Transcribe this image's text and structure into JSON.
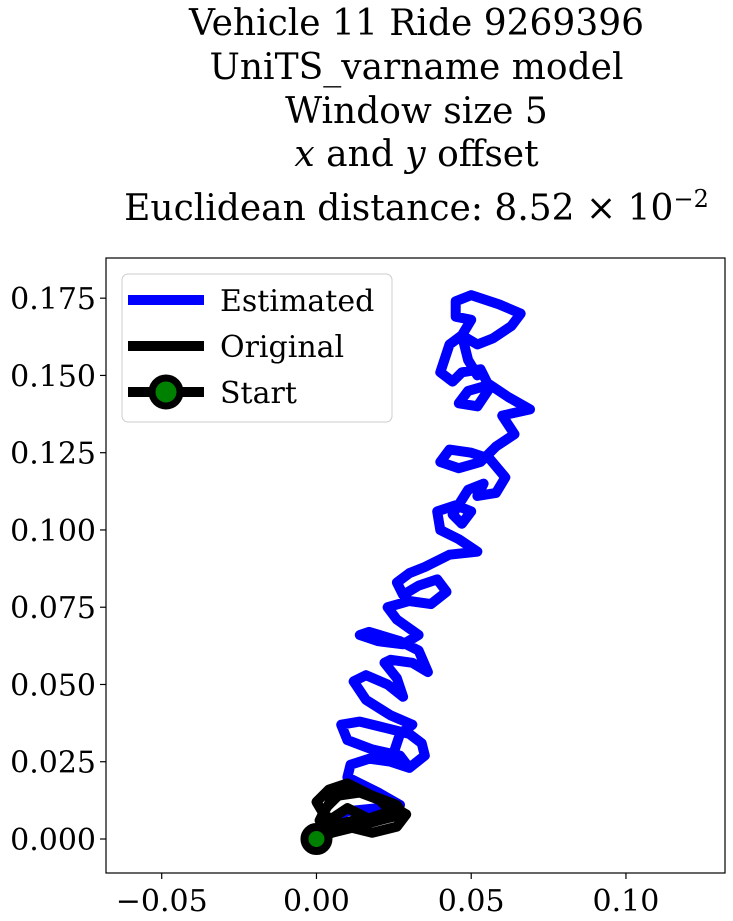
{
  "chart_data": {
    "type": "line",
    "title_lines": [
      "Vehicle 11 Ride 9269396",
      "UniTS_varname model",
      "Window size 5",
      "x and y offset",
      "Euclidean distance: 8.52 × 10⁻²"
    ],
    "title_math": {
      "offset_x": "x",
      "offset_and": " and ",
      "offset_y": "y",
      "offset_rest": " offset",
      "dist_prefix": "Euclidean distance: 8.52 × 10",
      "dist_exp": "−2"
    },
    "xlim": [
      -0.068,
      0.132
    ],
    "ylim": [
      -0.011,
      0.188
    ],
    "x_ticks": [
      -0.05,
      0.0,
      0.05,
      0.1
    ],
    "x_tick_labels": [
      "−0.05",
      "0.00",
      "0.05",
      "0.10"
    ],
    "y_ticks": [
      0.0,
      0.025,
      0.05,
      0.075,
      0.1,
      0.125,
      0.15,
      0.175
    ],
    "y_tick_labels": [
      "0.000",
      "0.025",
      "0.050",
      "0.075",
      "0.100",
      "0.125",
      "0.150",
      "0.175"
    ],
    "grid": false,
    "legend_position": "top-left",
    "legend": [
      {
        "label": "Estimated",
        "color": "#0000ff"
      },
      {
        "label": "Original",
        "color": "#000000"
      },
      {
        "label": "Start",
        "color": "#000000",
        "marker_color": "#008000"
      }
    ],
    "series": [
      {
        "name": "Estimated",
        "color": "#0000ff",
        "points": [
          [
            0.0,
            0.0
          ],
          [
            0.003,
            0.005
          ],
          [
            0.01,
            0.009
          ],
          [
            0.02,
            0.01
          ],
          [
            0.027,
            0.011
          ],
          [
            0.02,
            0.015
          ],
          [
            0.01,
            0.02
          ],
          [
            0.011,
            0.024
          ],
          [
            0.017,
            0.026
          ],
          [
            0.024,
            0.025
          ],
          [
            0.03,
            0.023
          ],
          [
            0.027,
            0.027
          ],
          [
            0.018,
            0.029
          ],
          [
            0.01,
            0.032
          ],
          [
            0.008,
            0.037
          ],
          [
            0.014,
            0.038
          ],
          [
            0.022,
            0.036
          ],
          [
            0.03,
            0.034
          ],
          [
            0.034,
            0.031
          ],
          [
            0.035,
            0.027
          ],
          [
            0.03,
            0.023
          ],
          [
            0.025,
            0.028
          ],
          [
            0.027,
            0.034
          ],
          [
            0.031,
            0.037
          ],
          [
            0.024,
            0.04
          ],
          [
            0.016,
            0.045
          ],
          [
            0.012,
            0.051
          ],
          [
            0.016,
            0.053
          ],
          [
            0.023,
            0.05
          ],
          [
            0.028,
            0.046
          ],
          [
            0.026,
            0.052
          ],
          [
            0.022,
            0.057
          ],
          [
            0.024,
            0.058
          ],
          [
            0.031,
            0.057
          ],
          [
            0.036,
            0.054
          ],
          [
            0.033,
            0.061
          ],
          [
            0.027,
            0.064
          ],
          [
            0.017,
            0.067
          ],
          [
            0.014,
            0.066
          ],
          [
            0.02,
            0.064
          ],
          [
            0.028,
            0.063
          ],
          [
            0.033,
            0.066
          ],
          [
            0.026,
            0.071
          ],
          [
            0.023,
            0.075
          ],
          [
            0.03,
            0.077
          ],
          [
            0.037,
            0.076
          ],
          [
            0.042,
            0.08
          ],
          [
            0.039,
            0.084
          ],
          [
            0.033,
            0.082
          ],
          [
            0.028,
            0.079
          ],
          [
            0.026,
            0.083
          ],
          [
            0.03,
            0.086
          ],
          [
            0.035,
            0.088
          ],
          [
            0.043,
            0.092
          ],
          [
            0.052,
            0.093
          ],
          [
            0.046,
            0.097
          ],
          [
            0.04,
            0.1
          ],
          [
            0.039,
            0.106
          ],
          [
            0.045,
            0.108
          ],
          [
            0.05,
            0.106
          ],
          [
            0.047,
            0.102
          ],
          [
            0.044,
            0.105
          ],
          [
            0.049,
            0.113
          ],
          [
            0.054,
            0.115
          ],
          [
            0.052,
            0.111
          ],
          [
            0.058,
            0.112
          ],
          [
            0.061,
            0.117
          ],
          [
            0.056,
            0.123
          ],
          [
            0.05,
            0.125
          ],
          [
            0.043,
            0.126
          ],
          [
            0.04,
            0.122
          ],
          [
            0.046,
            0.12
          ],
          [
            0.053,
            0.122
          ],
          [
            0.058,
            0.127
          ],
          [
            0.064,
            0.131
          ],
          [
            0.06,
            0.137
          ],
          [
            0.069,
            0.139
          ],
          [
            0.062,
            0.143
          ],
          [
            0.056,
            0.147
          ],
          [
            0.049,
            0.145
          ],
          [
            0.046,
            0.141
          ],
          [
            0.052,
            0.14
          ],
          [
            0.056,
            0.146
          ],
          [
            0.053,
            0.152
          ],
          [
            0.047,
            0.151
          ],
          [
            0.044,
            0.148
          ],
          [
            0.04,
            0.151
          ],
          [
            0.043,
            0.16
          ],
          [
            0.047,
            0.163
          ],
          [
            0.052,
            0.16
          ],
          [
            0.057,
            0.162
          ],
          [
            0.063,
            0.166
          ],
          [
            0.066,
            0.17
          ],
          [
            0.059,
            0.173
          ],
          [
            0.05,
            0.176
          ],
          [
            0.045,
            0.174
          ],
          [
            0.045,
            0.169
          ],
          [
            0.05,
            0.168
          ],
          [
            0.047,
            0.163
          ],
          [
            0.049,
            0.155
          ],
          [
            0.052,
            0.15
          ]
        ]
      },
      {
        "name": "Original",
        "color": "#000000",
        "points": [
          [
            0.0,
            0.0
          ],
          [
            0.005,
            0.002
          ],
          [
            0.013,
            0.004
          ],
          [
            0.02,
            0.006
          ],
          [
            0.028,
            0.008
          ],
          [
            0.026,
            0.011
          ],
          [
            0.018,
            0.014
          ],
          [
            0.01,
            0.018
          ],
          [
            0.004,
            0.016
          ],
          [
            0.0,
            0.012
          ],
          [
            0.003,
            0.007
          ],
          [
            0.01,
            0.004
          ],
          [
            0.018,
            0.002
          ],
          [
            0.026,
            0.004
          ],
          [
            0.029,
            0.008
          ],
          [
            0.022,
            0.012
          ],
          [
            0.014,
            0.015
          ],
          [
            0.007,
            0.014
          ],
          [
            0.003,
            0.01
          ],
          [
            0.001,
            0.006
          ],
          [
            0.007,
            0.003
          ],
          [
            0.015,
            0.006
          ],
          [
            0.024,
            0.009
          ],
          [
            0.02,
            0.013
          ],
          [
            0.012,
            0.016
          ],
          [
            0.005,
            0.013
          ],
          [
            0.002,
            0.008
          ],
          [
            0.008,
            0.005
          ],
          [
            0.016,
            0.007
          ],
          [
            0.01,
            0.01
          ],
          [
            0.004,
            0.006
          ],
          [
            0.0,
            0.001
          ]
        ]
      }
    ],
    "start_point": {
      "name": "Start",
      "x": 0.0,
      "y": 0.0
    }
  }
}
